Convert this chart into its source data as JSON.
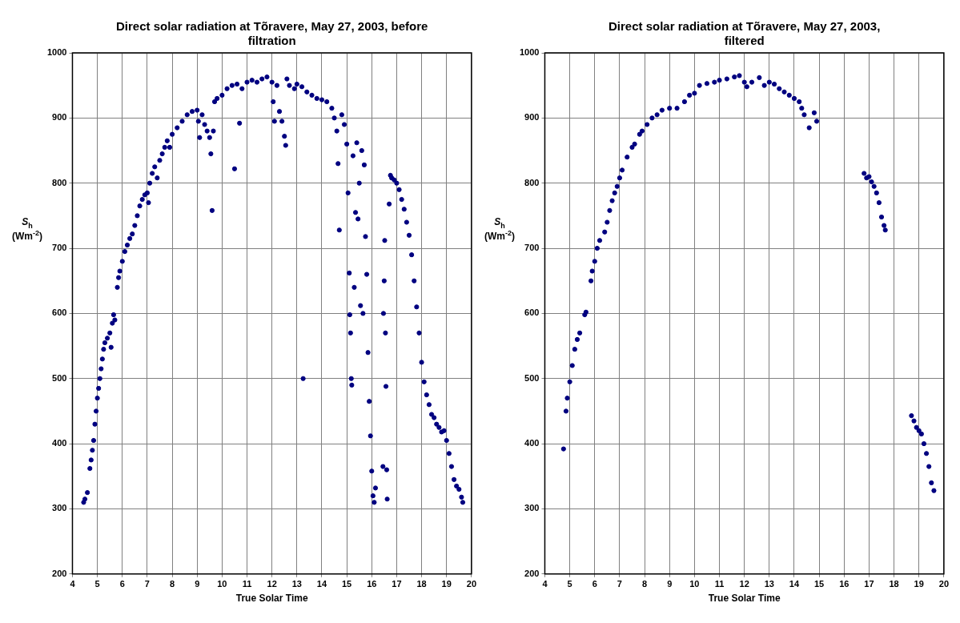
{
  "chart_data": [
    {
      "type": "scatter",
      "title": "Direct solar radiation at Tõravere, May 27, 2003, before filtration",
      "xlabel": "True Solar Time",
      "ylabel": "S$_{h}$ (Wm$^{-2}$)",
      "xlim": [
        4,
        20
      ],
      "xticks": [
        4,
        5,
        6,
        7,
        8,
        9,
        10,
        11,
        12,
        13,
        14,
        15,
        16,
        17,
        18,
        19,
        20
      ],
      "ylim": [
        200,
        1000
      ],
      "yticks": [
        200,
        300,
        400,
        500,
        600,
        700,
        800,
        900,
        1000
      ],
      "grid": true,
      "marker": "circle",
      "legend": false,
      "series": [
        {
          "color": "#000080",
          "x": [
            4.45,
            4.5,
            4.6,
            4.7,
            4.75,
            4.8,
            4.85,
            4.9,
            4.95,
            5.0,
            5.05,
            5.1,
            5.15,
            5.2,
            5.25,
            5.3,
            5.4,
            5.5,
            5.55,
            5.6,
            5.65,
            5.7,
            5.8,
            5.85,
            5.9,
            6.0,
            6.1,
            6.2,
            6.3,
            6.4,
            6.5,
            6.6,
            6.7,
            6.8,
            6.9,
            7.0,
            7.05,
            7.1,
            7.2,
            7.3,
            7.4,
            7.5,
            7.6,
            7.7,
            7.8,
            7.9,
            8.0,
            8.2,
            8.4,
            8.6,
            8.8,
            9.0,
            9.05,
            9.1,
            9.2,
            9.3,
            9.4,
            9.5,
            9.55,
            9.6,
            9.65,
            9.7,
            9.8,
            10.0,
            10.2,
            10.4,
            10.5,
            10.6,
            10.7,
            10.8,
            11.0,
            11.2,
            11.4,
            11.6,
            11.8,
            12.0,
            12.05,
            12.1,
            12.2,
            12.3,
            12.4,
            12.5,
            12.55,
            12.6,
            12.7,
            12.9,
            13.0,
            13.2,
            13.25,
            13.4,
            13.6,
            13.8,
            14.0,
            14.2,
            14.4,
            14.5,
            14.6,
            14.65,
            14.7,
            14.8,
            14.9,
            15.0,
            15.05,
            15.1,
            15.12,
            15.15,
            15.18,
            15.2,
            15.25,
            15.3,
            15.35,
            15.4,
            15.45,
            15.5,
            15.55,
            15.6,
            15.65,
            15.7,
            15.75,
            15.8,
            15.85,
            15.9,
            15.95,
            16.0,
            16.05,
            16.1,
            16.15,
            16.45,
            16.47,
            16.5,
            16.52,
            16.55,
            16.57,
            16.6,
            16.62,
            16.7,
            16.75,
            16.8,
            16.9,
            17.0,
            17.1,
            17.2,
            17.3,
            17.4,
            17.5,
            17.6,
            17.7,
            17.8,
            17.9,
            18.0,
            18.1,
            18.2,
            18.3,
            18.4,
            18.5,
            18.6,
            18.7,
            18.8,
            18.9,
            19.0,
            19.1,
            19.2,
            19.3,
            19.4,
            19.5,
            19.6,
            19.65
          ],
          "values": [
            310,
            315,
            325,
            362,
            375,
            390,
            405,
            430,
            450,
            470,
            485,
            500,
            515,
            530,
            545,
            555,
            562,
            570,
            548,
            585,
            598,
            590,
            640,
            655,
            665,
            680,
            695,
            705,
            715,
            722,
            735,
            750,
            765,
            775,
            782,
            785,
            770,
            800,
            815,
            825,
            808,
            835,
            845,
            855,
            865,
            855,
            875,
            885,
            895,
            905,
            910,
            912,
            895,
            870,
            905,
            890,
            880,
            870,
            845,
            758,
            880,
            925,
            930,
            935,
            945,
            950,
            822,
            952,
            892,
            945,
            955,
            958,
            955,
            960,
            963,
            955,
            925,
            895,
            950,
            910,
            895,
            872,
            858,
            960,
            950,
            945,
            952,
            948,
            500,
            940,
            935,
            930,
            928,
            925,
            915,
            900,
            880,
            830,
            728,
            905,
            890,
            860,
            785,
            662,
            598,
            570,
            500,
            490,
            842,
            640,
            755,
            862,
            745,
            800,
            612,
            850,
            600,
            828,
            718,
            660,
            540,
            465,
            412,
            358,
            320,
            310,
            332,
            365,
            600,
            650,
            712,
            570,
            488,
            360,
            315,
            768,
            812,
            808,
            805,
            800,
            790,
            775,
            760,
            740,
            720,
            690,
            650,
            610,
            570,
            525,
            495,
            475,
            460,
            445,
            440,
            430,
            425,
            418,
            420,
            405,
            385,
            365,
            345,
            335,
            330,
            318,
            310
          ]
        }
      ]
    },
    {
      "type": "scatter",
      "title": "Direct solar radiation at Tõravere, May 27, 2003, filtered",
      "xlabel": "True Solar Time",
      "ylabel": "S$_{h}$ (Wm$^{-2}$)",
      "xlim": [
        4,
        20
      ],
      "xticks": [
        4,
        5,
        6,
        7,
        8,
        9,
        10,
        11,
        12,
        13,
        14,
        15,
        16,
        17,
        18,
        19,
        20
      ],
      "ylim": [
        200,
        1000
      ],
      "yticks": [
        200,
        300,
        400,
        500,
        600,
        700,
        800,
        900,
        1000
      ],
      "grid": true,
      "marker": "circle",
      "legend": false,
      "series": [
        {
          "color": "#000080",
          "x": [
            4.75,
            4.85,
            4.9,
            5.0,
            5.1,
            5.2,
            5.3,
            5.4,
            5.6,
            5.65,
            5.85,
            5.9,
            6.0,
            6.1,
            6.2,
            6.4,
            6.5,
            6.6,
            6.7,
            6.8,
            6.9,
            7.0,
            7.1,
            7.3,
            7.5,
            7.6,
            7.8,
            7.9,
            8.1,
            8.3,
            8.5,
            8.7,
            9.0,
            9.3,
            9.6,
            9.8,
            10.0,
            10.2,
            10.5,
            10.8,
            11.0,
            11.3,
            11.6,
            11.8,
            12.0,
            12.1,
            12.3,
            12.6,
            12.8,
            13.0,
            13.2,
            13.4,
            13.6,
            13.8,
            14.0,
            14.2,
            14.3,
            14.4,
            14.6,
            14.8,
            14.9,
            16.8,
            16.9,
            17.0,
            17.1,
            17.2,
            17.3,
            17.4,
            17.5,
            17.6,
            17.65,
            18.7,
            18.8,
            18.9,
            19.0,
            19.1,
            19.2,
            19.3,
            19.4,
            19.5,
            19.6
          ],
          "values": [
            392,
            450,
            470,
            495,
            520,
            545,
            560,
            570,
            598,
            602,
            650,
            665,
            680,
            700,
            712,
            725,
            740,
            758,
            773,
            785,
            795,
            808,
            820,
            840,
            855,
            860,
            875,
            880,
            890,
            900,
            905,
            912,
            915,
            915,
            925,
            935,
            938,
            950,
            953,
            955,
            958,
            960,
            963,
            965,
            955,
            948,
            955,
            962,
            950,
            955,
            952,
            945,
            940,
            935,
            930,
            925,
            915,
            905,
            885,
            908,
            895,
            815,
            808,
            810,
            802,
            795,
            785,
            770,
            748,
            735,
            728,
            443,
            435,
            425,
            420,
            415,
            400,
            385,
            365,
            340,
            328
          ]
        }
      ]
    }
  ]
}
